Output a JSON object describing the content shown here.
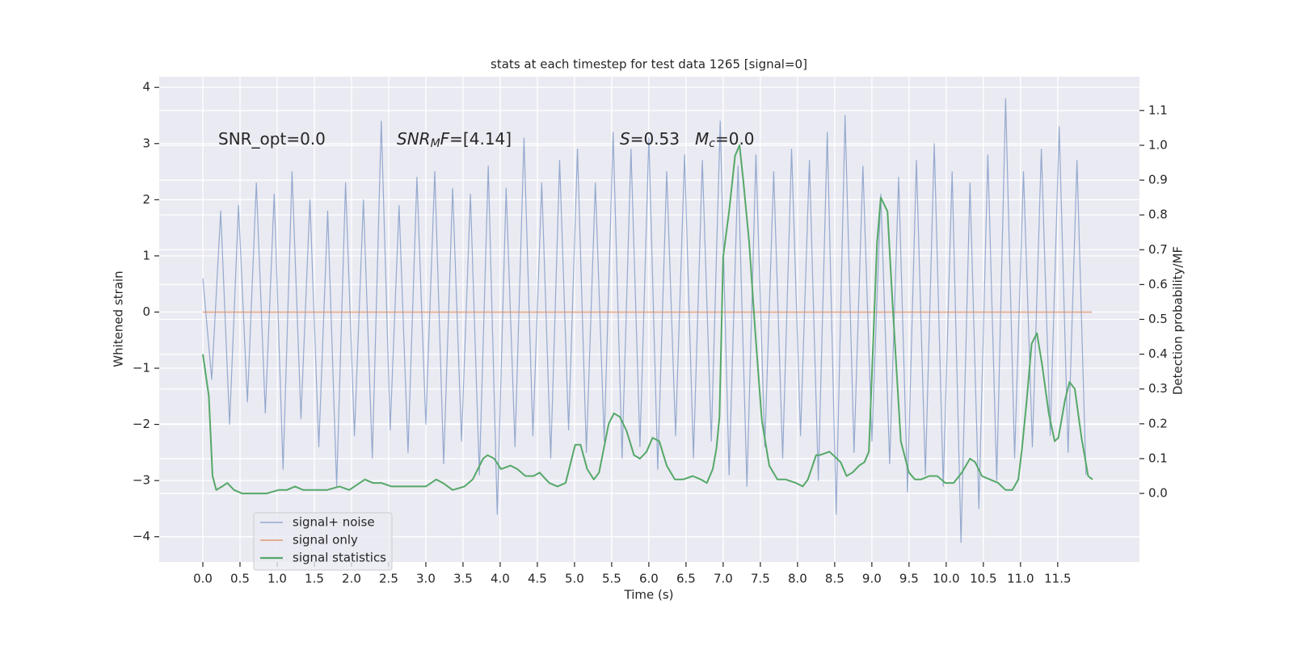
{
  "chart_data": {
    "type": "line",
    "title": "stats at each timestep for test data 1265 [signal=0]",
    "xlabel": "Time (s)",
    "ylabel": "Whitened strain",
    "y2label": "Detection probability/MF",
    "grid": true,
    "legend": "lower left",
    "xlim": [
      -0.587,
      12.6
    ],
    "ylim": [
      -4.45,
      4.19
    ],
    "y2lim": [
      -0.197,
      1.197
    ],
    "xticks": [
      {
        "value": 0,
        "label": "0.0"
      },
      0.5,
      {
        "value": 1,
        "label": "1.0"
      },
      1.5,
      {
        "value": 2,
        "label": "2.0"
      },
      2.5,
      {
        "value": 3,
        "label": "3.0"
      },
      3.5,
      {
        "value": 4,
        "label": "4.0"
      },
      4.5,
      {
        "value": 5,
        "label": "5.0"
      },
      5.5,
      {
        "value": 6,
        "label": "6.0"
      },
      6.5,
      {
        "value": 7,
        "label": "7.0"
      },
      7.5,
      {
        "value": 8,
        "label": "8.0"
      },
      8.5,
      {
        "value": 9,
        "label": "9.0"
      },
      9.5,
      {
        "value": 10,
        "label": "10.0"
      },
      10.5,
      {
        "value": 11,
        "label": "11.0"
      },
      11.5
    ],
    "yticks": [
      {
        "value": -4,
        "label": "−4"
      },
      {
        "value": -3,
        "label": "−3"
      },
      {
        "value": -2,
        "label": "−2"
      },
      {
        "value": -1,
        "label": "−1"
      },
      0,
      1,
      2,
      3,
      4
    ],
    "y2ticks": [
      {
        "value": 0,
        "label": "0.0"
      },
      0.1,
      0.2,
      0.3,
      0.4,
      0.5,
      0.6,
      0.7,
      0.8,
      0.9,
      {
        "value": 1,
        "label": "1.0"
      },
      1.1
    ],
    "annotations": [
      {
        "parts": [
          {
            "text": "SNR_opt=0.0"
          }
        ]
      },
      {
        "parts": [
          {
            "text": "SNR",
            "italic": true
          },
          {
            "text": "M",
            "italic": true,
            "sub": true
          },
          {
            "text": "F",
            "italic": true
          },
          {
            "text": "=[4.14]"
          }
        ]
      },
      {
        "parts": [
          {
            "text": "S",
            "italic": true
          },
          {
            "text": "=0.53"
          }
        ]
      },
      {
        "parts": [
          {
            "text": "M",
            "italic": true
          },
          {
            "text": "c",
            "italic": true,
            "sub": true
          },
          {
            "text": "=0.0"
          }
        ]
      }
    ],
    "series": [
      {
        "name": "signal+ noise",
        "color": "#4c72b0",
        "x": [
          0,
          0.12,
          0.24,
          0.36,
          0.48,
          0.6,
          0.72,
          0.84,
          0.96,
          1.08,
          1.2,
          1.32,
          1.44,
          1.56,
          1.68,
          1.8,
          1.92,
          2.04,
          2.16,
          2.28,
          2.4,
          2.52,
          2.64,
          2.76,
          2.88,
          3,
          3.12,
          3.24,
          3.36,
          3.48,
          3.6,
          3.72,
          3.84,
          3.96,
          4.08,
          4.2,
          4.32,
          4.44,
          4.56,
          4.68,
          4.8,
          4.92,
          5.04,
          5.16,
          5.28,
          5.4,
          5.52,
          5.64,
          5.76,
          5.88,
          6,
          6.12,
          6.24,
          6.36,
          6.48,
          6.6,
          6.72,
          6.84,
          6.96,
          7.08,
          7.2,
          7.32,
          7.44,
          7.56,
          7.68,
          7.8,
          7.92,
          8.04,
          8.16,
          8.28,
          8.4,
          8.52,
          8.64,
          8.76,
          8.88,
          9,
          9.12,
          9.24,
          9.36,
          9.48,
          9.6,
          9.72,
          9.84,
          9.96,
          10.08,
          10.2,
          10.32,
          10.44,
          10.56,
          10.68,
          10.8,
          10.92,
          11.04,
          11.16,
          11.28,
          11.4,
          11.52,
          11.64,
          11.76,
          11.88
        ],
        "values": [
          0.6,
          -1.2,
          1.8,
          -2.0,
          1.9,
          -1.6,
          2.3,
          -1.8,
          2.1,
          -2.8,
          2.5,
          -1.9,
          2.0,
          -2.4,
          1.8,
          -3.1,
          2.3,
          -2.2,
          2.0,
          -2.6,
          3.4,
          -2.1,
          1.9,
          -2.5,
          2.4,
          -2.0,
          2.5,
          -2.7,
          2.2,
          -2.3,
          2.1,
          -2.9,
          2.6,
          -3.6,
          2.2,
          -2.4,
          3.1,
          -2.2,
          2.3,
          -2.6,
          2.7,
          -2.1,
          2.9,
          -2.5,
          2.3,
          -2.3,
          3.2,
          -2.6,
          2.9,
          -2.4,
          3.1,
          -2.8,
          2.5,
          -2.2,
          2.8,
          -2.6,
          2.7,
          -2.3,
          3.4,
          -2.9,
          2.6,
          -3.1,
          2.8,
          -2.4,
          2.5,
          -2.6,
          2.9,
          -2.2,
          2.7,
          -3.0,
          3.2,
          -3.6,
          3.5,
          -2.5,
          2.6,
          -2.3,
          2.1,
          -2.7,
          2.4,
          -3.2,
          2.7,
          -2.9,
          3.0,
          -3.1,
          2.5,
          -4.1,
          2.3,
          -3.5,
          2.8,
          -3.0,
          3.8,
          -2.6,
          2.5,
          -2.4,
          2.9,
          -2.2,
          3.3,
          -2.5,
          2.7,
          -2.9
        ]
      },
      {
        "name": "signal only",
        "color": "#dd8452",
        "x": [
          0,
          11.96
        ],
        "values": [
          0,
          0
        ]
      },
      {
        "name": "signal statistics",
        "color": "#55a868",
        "axis": "y2",
        "x": [
          0,
          0.08,
          0.13,
          0.18,
          0.26,
          0.33,
          0.42,
          0.53,
          0.7,
          0.86,
          1.02,
          1.13,
          1.24,
          1.35,
          1.51,
          1.67,
          1.84,
          1.97,
          2.11,
          2.18,
          2.29,
          2.4,
          2.54,
          2.71,
          2.87,
          3,
          3.14,
          3.23,
          3.36,
          3.52,
          3.63,
          3.77,
          3.83,
          3.92,
          4.01,
          4.14,
          4.23,
          4.34,
          4.45,
          4.53,
          4.66,
          4.77,
          4.88,
          5.01,
          5.08,
          5.17,
          5.26,
          5.33,
          5.46,
          5.53,
          5.61,
          5.7,
          5.8,
          5.88,
          5.97,
          6.05,
          6.14,
          6.24,
          6.35,
          6.46,
          6.59,
          6.7,
          6.78,
          6.86,
          6.91,
          6.95,
          7,
          7.08,
          7.16,
          7.22,
          7.27,
          7.35,
          7.43,
          7.52,
          7.62,
          7.73,
          7.84,
          7.98,
          8.07,
          8.14,
          8.25,
          8.3,
          8.43,
          8.58,
          8.66,
          8.74,
          8.83,
          8.9,
          8.96,
          9.07,
          9.12,
          9.21,
          9.28,
          9.39,
          9.5,
          9.58,
          9.66,
          9.77,
          9.88,
          9.99,
          10.1,
          10.21,
          10.32,
          10.39,
          10.48,
          10.59,
          10.7,
          10.8,
          10.89,
          10.97,
          11.02,
          11.08,
          11.15,
          11.22,
          11.29,
          11.38,
          11.46,
          11.51,
          11.6,
          11.66,
          11.73,
          11.82,
          11.91,
          11.97
        ],
        "values": [
          0.4,
          0.28,
          0.05,
          0.01,
          0.02,
          0.03,
          0.01,
          0,
          0,
          0,
          0.01,
          0.01,
          0.02,
          0.01,
          0.01,
          0.01,
          0.02,
          0.01,
          0.03,
          0.04,
          0.03,
          0.03,
          0.02,
          0.02,
          0.02,
          0.02,
          0.04,
          0.03,
          0.01,
          0.02,
          0.04,
          0.1,
          0.11,
          0.1,
          0.07,
          0.08,
          0.07,
          0.05,
          0.05,
          0.06,
          0.03,
          0.02,
          0.03,
          0.14,
          0.14,
          0.07,
          0.04,
          0.06,
          0.2,
          0.23,
          0.22,
          0.18,
          0.11,
          0.1,
          0.12,
          0.16,
          0.15,
          0.08,
          0.04,
          0.04,
          0.05,
          0.04,
          0.03,
          0.07,
          0.13,
          0.22,
          0.68,
          0.81,
          0.97,
          1.0,
          0.9,
          0.72,
          0.47,
          0.21,
          0.08,
          0.04,
          0.04,
          0.03,
          0.02,
          0.04,
          0.11,
          0.11,
          0.12,
          0.09,
          0.05,
          0.06,
          0.08,
          0.09,
          0.12,
          0.72,
          0.85,
          0.81,
          0.54,
          0.15,
          0.06,
          0.04,
          0.04,
          0.05,
          0.05,
          0.03,
          0.03,
          0.06,
          0.1,
          0.09,
          0.05,
          0.04,
          0.03,
          0.01,
          0.01,
          0.04,
          0.13,
          0.26,
          0.43,
          0.46,
          0.37,
          0.23,
          0.15,
          0.16,
          0.27,
          0.32,
          0.3,
          0.16,
          0.05,
          0.04
        ]
      }
    ]
  }
}
